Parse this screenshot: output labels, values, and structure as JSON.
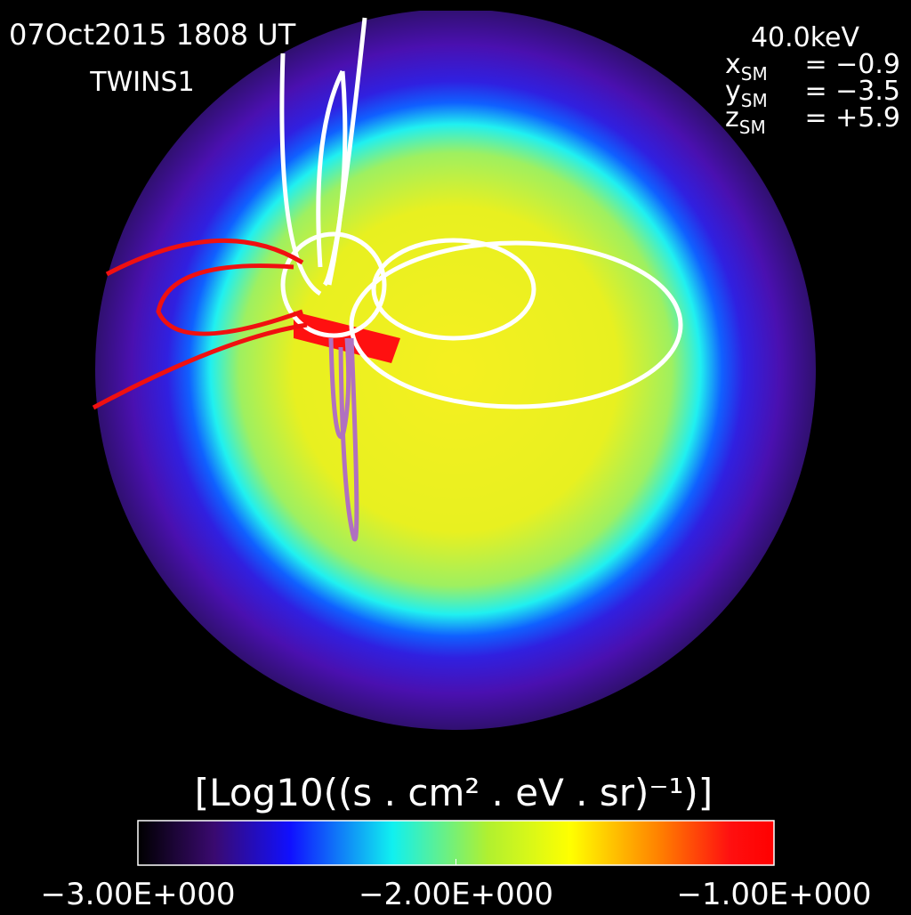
{
  "header": {
    "date": "07Oct2015 1808 UT",
    "satellite": "TWINS1",
    "energy": "40.0keV",
    "coords": [
      {
        "axis": "x",
        "frame": "SM",
        "value": "= −0.9"
      },
      {
        "axis": "y",
        "frame": "SM",
        "value": "= −3.5"
      },
      {
        "axis": "z",
        "frame": "SM",
        "value": "= +5.9"
      }
    ]
  },
  "colorbar": {
    "label": "[Log10((s . cm² . eV . sr)⁻¹)]",
    "lim": [
      -3,
      -1
    ],
    "ticks": [
      {
        "value": -3,
        "label": "−3.00E+000"
      },
      {
        "value": -2,
        "label": "−2.00E+000"
      },
      {
        "value": -1,
        "label": "−1.00E+000"
      }
    ]
  }
}
